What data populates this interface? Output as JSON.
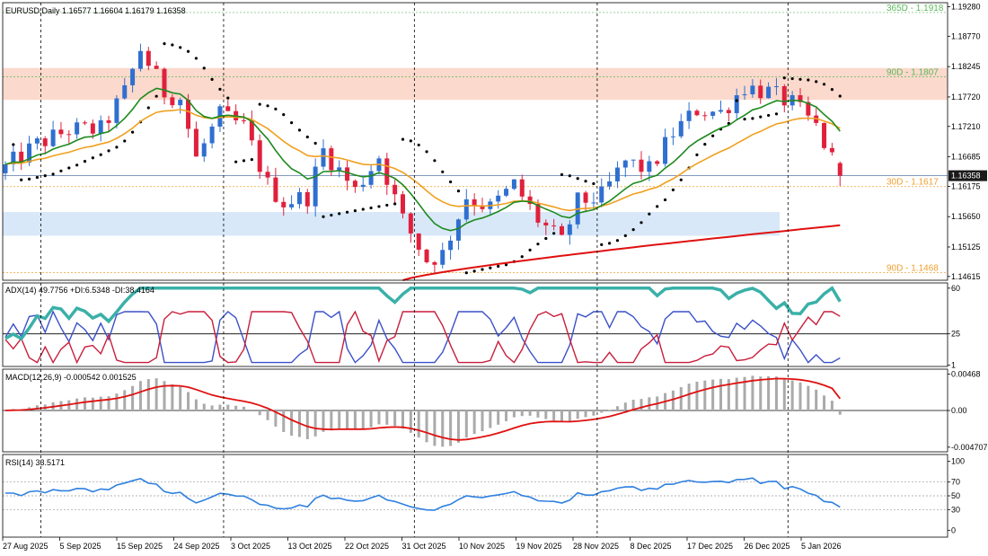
{
  "chart_data": [
    {
      "type": "candlestick",
      "title": "EURUSD,Daily  1.16577 1.16604 1.16179 1.16358",
      "ylim": [
        1.1455,
        1.1935
      ],
      "y_ticks": [
        "1.19280",
        "1.18770",
        "1.18245",
        "1.17720",
        "1.17210",
        "1.16685",
        "1.16175",
        "1.15650",
        "1.15125",
        "1.14615"
      ],
      "current_price": "1.16358",
      "levels": [
        {
          "label": "365D - 1.1918",
          "value": 1.1918,
          "color": "#5cb85c"
        },
        {
          "label": "90D - 1.1807",
          "value": 1.1807,
          "color": "#5cb85c"
        },
        {
          "label": "30D - 1.1617",
          "value": 1.1617,
          "color": "#f0a030"
        },
        {
          "label": "90D - 1.1468",
          "value": 1.1468,
          "color": "#f0a030"
        }
      ],
      "zones": [
        {
          "from": 1.1767,
          "to": 1.1822,
          "color": "#fbd9cc"
        },
        {
          "from": 1.1532,
          "to": 1.1573,
          "color": "#d8e8f8"
        }
      ],
      "bull_color": "#2f6fd0",
      "bear_color": "#e0203c",
      "sar_color": "#000000",
      "ema_fast_color": "#1e8a1e",
      "ema_mid_color": "#f0a020",
      "ema_slow_color": "#e01010"
    },
    {
      "type": "line",
      "title": "ADX(14) 49.7756 +DI:6.5348 -DI:38.4164",
      "ylim": [
        0,
        64
      ],
      "y_ticks": [
        "60",
        "25",
        "1"
      ],
      "level": 25,
      "series": [
        {
          "name": "ADX",
          "color": "#3ab0a8"
        },
        {
          "name": "+DI",
          "color": "#3a50c8"
        },
        {
          "name": "-DI",
          "color": "#c81e3c"
        }
      ]
    },
    {
      "type": "bar",
      "title": "MACD(12,26,9) -0.000542 0.001525",
      "ylim": [
        -0.0053,
        0.0053
      ],
      "y_ticks": [
        "0.00468",
        "0.00",
        "-0.004707"
      ],
      "hist_color": "#aaaaaa",
      "signal_color": "#e01010"
    },
    {
      "type": "line",
      "title": "RSI(14) 33.5171",
      "ylim": [
        -10,
        110
      ],
      "y_ticks": [
        "100",
        "70",
        "50",
        "30",
        "0"
      ],
      "levels": [
        70,
        50,
        30
      ],
      "series": [
        {
          "name": "RSI",
          "color": "#2f80e0"
        }
      ]
    }
  ],
  "x_axis": {
    "dates": [
      "27 Aug 2025",
      "5 Sep 2025",
      "15 Sep 2025",
      "24 Sep 2025",
      "3 Oct 2025",
      "13 Oct 2025",
      "22 Oct 2025",
      "31 Oct 2025",
      "10 Nov 2025",
      "19 Nov 2025",
      "28 Nov 2025",
      "8 Dec 2025",
      "17 Dec 2025",
      "26 Dec 2025",
      "5 Jan 2026"
    ]
  }
}
